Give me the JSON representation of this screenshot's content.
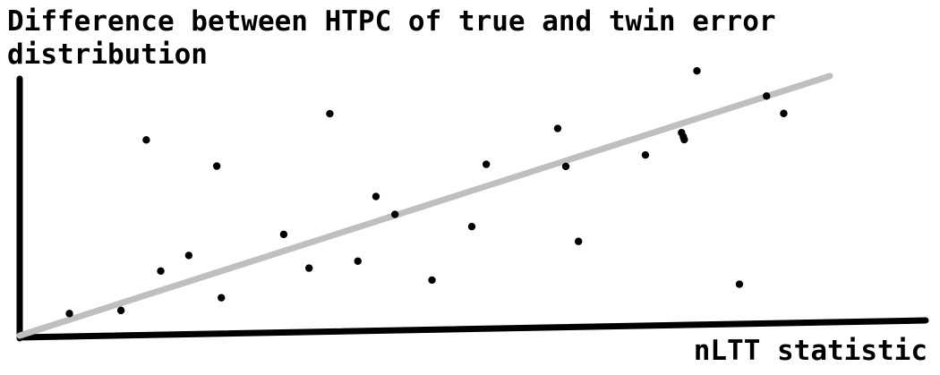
{
  "chart_data": {
    "type": "scatter",
    "title": "",
    "ylabel": "Difference between HTPC of true and twin error distribution",
    "xlabel": "nLTT statistic",
    "grid": false,
    "xlim": [
      0,
      10
    ],
    "ylim": [
      0,
      10
    ],
    "points": [
      {
        "x": 0.55,
        "y": 0.85
      },
      {
        "x": 1.12,
        "y": 0.97
      },
      {
        "x": 1.4,
        "y": 7.54
      },
      {
        "x": 1.56,
        "y": 2.49
      },
      {
        "x": 1.87,
        "y": 3.09
      },
      {
        "x": 2.18,
        "y": 6.53
      },
      {
        "x": 2.23,
        "y": 1.46
      },
      {
        "x": 2.92,
        "y": 3.9
      },
      {
        "x": 3.2,
        "y": 2.6
      },
      {
        "x": 3.43,
        "y": 8.55
      },
      {
        "x": 3.74,
        "y": 2.87
      },
      {
        "x": 3.94,
        "y": 5.36
      },
      {
        "x": 4.15,
        "y": 4.67
      },
      {
        "x": 4.56,
        "y": 2.14
      },
      {
        "x": 5.0,
        "y": 4.2
      },
      {
        "x": 5.16,
        "y": 6.6
      },
      {
        "x": 5.95,
        "y": 7.98
      },
      {
        "x": 6.04,
        "y": 6.52
      },
      {
        "x": 6.18,
        "y": 3.63
      },
      {
        "x": 6.92,
        "y": 6.96
      },
      {
        "x": 7.32,
        "y": 7.82
      },
      {
        "x": 7.34,
        "y": 7.66
      },
      {
        "x": 7.35,
        "y": 7.55
      },
      {
        "x": 7.49,
        "y": 10.2
      },
      {
        "x": 7.96,
        "y": 1.98
      },
      {
        "x": 8.26,
        "y": 9.23
      },
      {
        "x": 8.45,
        "y": 8.56
      }
    ],
    "trend_line": {
      "x": [
        0,
        8.96
      ],
      "y": [
        0,
        10.0
      ]
    },
    "colors": {
      "points": "#000000",
      "trend_line": "#bfbfbf",
      "axes": "#000000"
    }
  }
}
